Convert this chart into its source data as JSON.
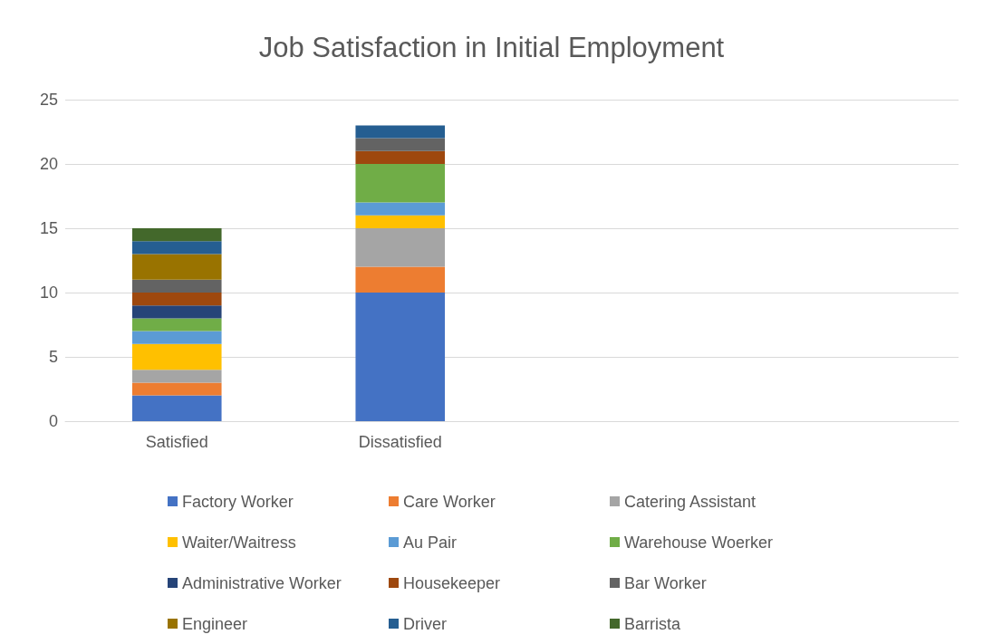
{
  "chart_data": {
    "type": "bar",
    "title": "Job Satisfaction in Initial Employment",
    "categories": [
      "Satisfied",
      "Dissatisfied",
      null,
      null
    ],
    "stacked": true,
    "ylim": [
      0,
      25
    ],
    "yticks": [
      0,
      5,
      10,
      15,
      20,
      25
    ],
    "grid": "y",
    "legend": "bottom",
    "series": [
      {
        "name": "Factory Worker",
        "color": "#4472c4",
        "values": [
          2,
          10,
          null,
          null
        ]
      },
      {
        "name": "Care Worker",
        "color": "#ed7d31",
        "values": [
          1,
          2,
          null,
          null
        ]
      },
      {
        "name": "Catering Assistant",
        "color": "#a5a5a5",
        "values": [
          1,
          3,
          null,
          null
        ]
      },
      {
        "name": "Waiter/Waitress",
        "color": "#ffc000",
        "values": [
          2,
          1,
          null,
          null
        ]
      },
      {
        "name": "Au Pair",
        "color": "#5b9bd5",
        "values": [
          1,
          1,
          null,
          null
        ]
      },
      {
        "name": "Warehouse Woerker",
        "color": "#70ad47",
        "values": [
          1,
          3,
          null,
          null
        ]
      },
      {
        "name": "Administrative Worker",
        "color": "#264478",
        "values": [
          1,
          0,
          null,
          null
        ]
      },
      {
        "name": "Housekeeper",
        "color": "#9e480e",
        "values": [
          1,
          1,
          null,
          null
        ]
      },
      {
        "name": "Bar Worker",
        "color": "#636363",
        "values": [
          1,
          1,
          null,
          null
        ]
      },
      {
        "name": "Engineer",
        "color": "#997300",
        "values": [
          2,
          0,
          null,
          null
        ]
      },
      {
        "name": "Driver",
        "color": "#255e91",
        "values": [
          1,
          1,
          null,
          null
        ]
      },
      {
        "name": "Barrista",
        "color": "#43682b",
        "values": [
          1,
          0,
          null,
          null
        ]
      }
    ]
  }
}
